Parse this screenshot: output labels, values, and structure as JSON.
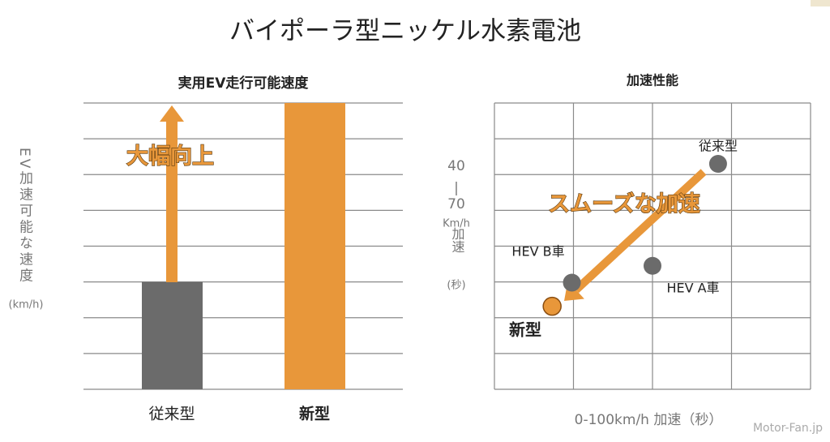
{
  "title": "バイポーラ型ニッケル水素電池",
  "watermark": "Motor-Fan.jp",
  "chart_data": [
    {
      "type": "bar",
      "title": "実用EV走行可能速度",
      "y_label": [
        "EV加速可能な速度",
        "(km/h)"
      ],
      "categories": [
        "従来型",
        "新型"
      ],
      "values": [
        3,
        8
      ],
      "colors": [
        "#6b6b6b",
        "#e8973a"
      ],
      "ylim": [
        0,
        8
      ],
      "yticks": [
        0,
        1,
        2,
        3,
        4,
        5,
        6,
        7,
        8
      ],
      "grid": true,
      "annotation": "大幅向上"
    },
    {
      "type": "scatter",
      "title": "加速性能",
      "x_label": "0-100km/h 加速（秒）",
      "y_label": [
        "40",
        "|",
        "70",
        "Km/h",
        "加速",
        "(秒)"
      ],
      "labels": [
        "従来型",
        "HEV A車",
        "HEV B車",
        "新型"
      ],
      "x": [
        2.83,
        2.0,
        0.98,
        0.73
      ],
      "values": [
        6.3,
        3.45,
        2.98,
        2.32
      ],
      "colors": [
        "#6b6b6b",
        "#6b6b6b",
        "#6b6b6b",
        "#e8973a"
      ],
      "xlim": [
        0,
        4
      ],
      "xticks": [
        0,
        1,
        2,
        3,
        4
      ],
      "ylim": [
        0,
        8
      ],
      "yticks": [
        0,
        1,
        2,
        3,
        4,
        5,
        6,
        7,
        8
      ],
      "grid": true,
      "annotation": "スムーズな加速"
    }
  ]
}
